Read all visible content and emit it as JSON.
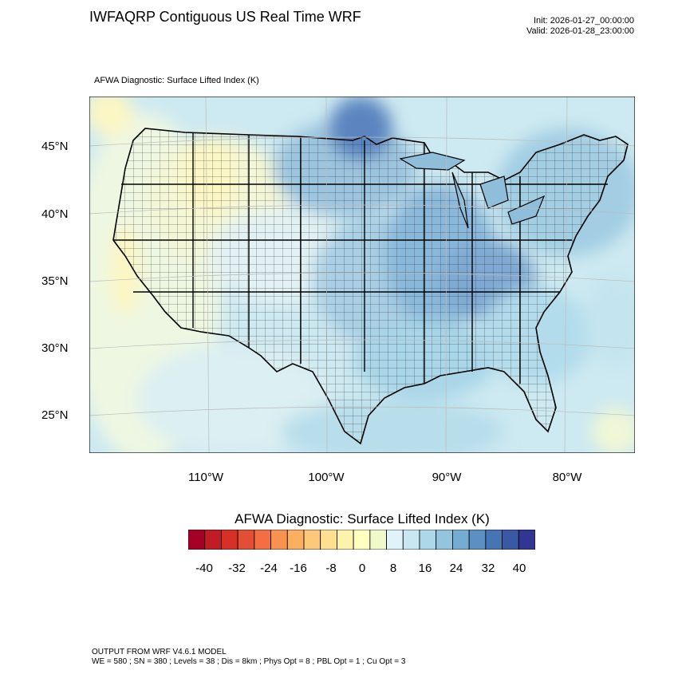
{
  "header": {
    "title": "IWFAQRP Contiguous US Real Time WRF",
    "init": "Init: 2026-01-27_00:00:00",
    "valid": "Valid: 2026-01-28_23:00:00"
  },
  "map": {
    "subtitle": "AFWA Diagnostic: Surface Lifted Index   (K)",
    "lat_labels": [
      "45°N",
      "40°N",
      "35°N",
      "30°N",
      "25°N"
    ],
    "lon_labels": [
      "110°W",
      "100°W",
      "90°W",
      "80°W"
    ],
    "field": "Surface Lifted Index"
  },
  "colorbar": {
    "title": "AFWA Diagnostic: Surface Lifted Index  (K)",
    "labels": [
      "-40",
      "-32",
      "-24",
      "-16",
      "-8",
      "0",
      "8",
      "16",
      "24",
      "32",
      "40"
    ],
    "colors": [
      "#a50026",
      "#c11b26",
      "#d73027",
      "#e34f35",
      "#f46d43",
      "#f8924f",
      "#fdae61",
      "#fdc879",
      "#fee090",
      "#fef3ac",
      "#ffffbf",
      "#f0f9ca",
      "#e0f3f8",
      "#c8e7f0",
      "#abd9e9",
      "#93c6de",
      "#74add1",
      "#5c90c2",
      "#4575b4",
      "#3b58a4",
      "#313695"
    ]
  },
  "footer": {
    "line1": "OUTPUT FROM WRF V4.6.1 MODEL",
    "line2": "WE = 580 ; SN = 380 ; Levels = 38 ; Dis = 8km ; Phys Opt = 8 ; PBL Opt = 1 ; Cu Opt = 3"
  }
}
